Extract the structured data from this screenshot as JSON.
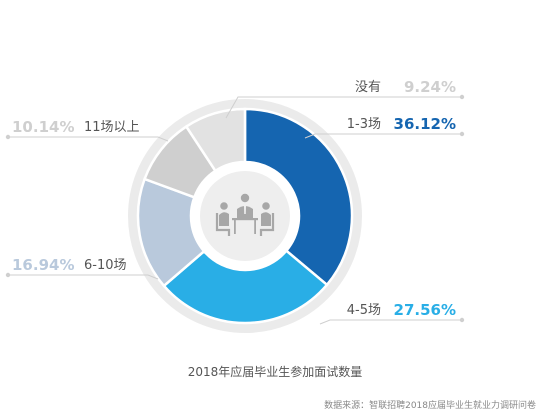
{
  "chart_data": {
    "type": "pie",
    "title": "2018年应届毕业生参加面试数量",
    "categories": [
      "1-3场",
      "4-5场",
      "6-10场",
      "11场以上",
      "没有"
    ],
    "values": [
      36.12,
      27.56,
      16.94,
      10.14,
      9.24
    ],
    "value_labels": [
      "36.12%",
      "27.56%",
      "16.94%",
      "10.14%",
      "9.24%"
    ],
    "colors": [
      "#1565b0",
      "#29aee6",
      "#b9c9dc",
      "#cfcfcf",
      "#e2e2e2"
    ],
    "label_colors": [
      "#1565b0",
      "#29aee6",
      "#b9c9dc",
      "#cfcfcf",
      "#cfcfcf"
    ],
    "center_icon": "meeting-icon"
  },
  "source": "数据来源：智联招聘2018应届毕业生就业力调研问卷"
}
